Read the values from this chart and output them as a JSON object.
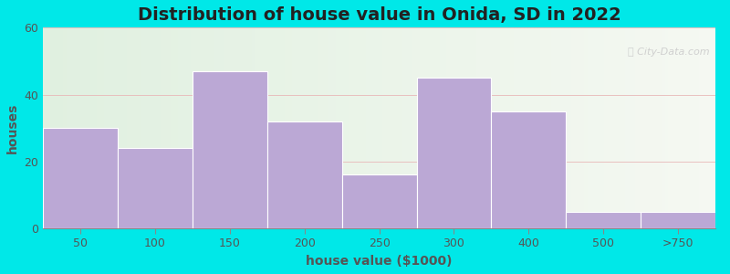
{
  "title": "Distribution of house value in Onida, SD in 2022",
  "xlabel": "house value ($1000)",
  "ylabel": "houses",
  "categories": [
    "50",
    "100",
    "150",
    "200",
    "250",
    "300",
    "400",
    "500",
    ">750"
  ],
  "values": [
    30,
    24,
    47,
    32,
    16,
    45,
    35,
    5,
    5
  ],
  "bar_color": "#BBA8D5",
  "bar_edgecolor": "#ffffff",
  "background_outer": "#00E8E8",
  "background_inner": "#E6F2E6",
  "background_inner_right": "#F5F8F2",
  "ylim": [
    0,
    60
  ],
  "yticks": [
    0,
    20,
    40,
    60
  ],
  "title_fontsize": 14,
  "axis_label_fontsize": 10,
  "tick_fontsize": 9,
  "bar_width": 1.0
}
